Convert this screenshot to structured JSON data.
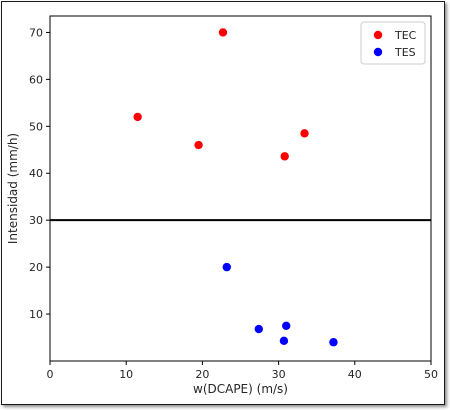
{
  "chart_data": {
    "type": "scatter",
    "title": "",
    "xlabel": "w(DCAPE) (m/s)",
    "ylabel": "Intensidad (mm/h)",
    "xlim": [
      0,
      50
    ],
    "ylim": [
      0,
      73.5
    ],
    "xticks": [
      0,
      10,
      20,
      30,
      40,
      50
    ],
    "yticks": [
      10,
      20,
      30,
      40,
      50,
      60,
      70
    ],
    "grid": false,
    "legend_position": "top-right",
    "reference_line": {
      "y": 30,
      "color": "#000000"
    },
    "series": [
      {
        "name": "TEC",
        "color": "#ff0000",
        "points": [
          {
            "x": 11.5,
            "y": 52.0
          },
          {
            "x": 19.5,
            "y": 46.0
          },
          {
            "x": 22.7,
            "y": 70.0
          },
          {
            "x": 30.8,
            "y": 43.6
          },
          {
            "x": 33.4,
            "y": 48.5
          }
        ]
      },
      {
        "name": "TES",
        "color": "#0000ff",
        "points": [
          {
            "x": 23.2,
            "y": 20.0
          },
          {
            "x": 27.4,
            "y": 6.8
          },
          {
            "x": 30.7,
            "y": 4.3
          },
          {
            "x": 31.0,
            "y": 7.5
          },
          {
            "x": 37.2,
            "y": 4.0
          }
        ]
      }
    ]
  }
}
